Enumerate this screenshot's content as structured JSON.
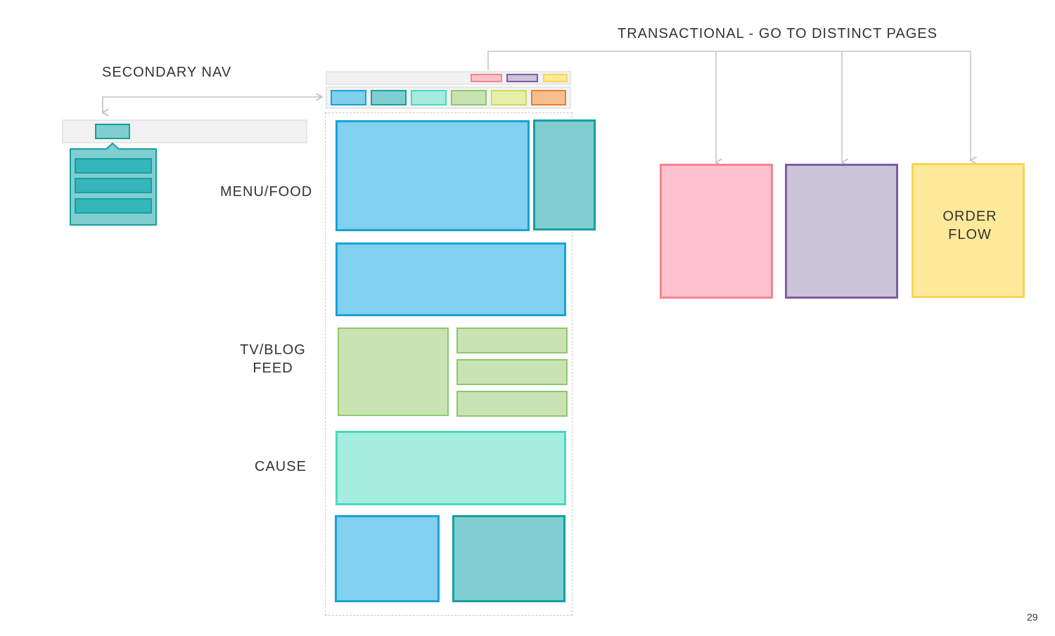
{
  "labels": {
    "transactional": "TRANSACTIONAL - GO TO DISTINCT PAGES",
    "secondary_nav": "SECONDARY NAV",
    "menu_food": "MENU/FOOD",
    "tv_blog_line1": "TV/BLOG",
    "tv_blog_line2": "FEED",
    "cause": "CAUSE",
    "order_flow_line1": "ORDER",
    "order_flow_line2": "FLOW",
    "page_number": "29"
  },
  "colors": {
    "blue_fill": "#80d0ee",
    "blue_border": "#1aa2d6",
    "teal_fill": "#80ced2",
    "teal_border": "#14a09f",
    "aqua_fill": "#a5ede0",
    "aqua_border": "#4bd9be",
    "green_fill": "#c9e3b3",
    "green_border": "#8ec872",
    "pink_fill": "#fdc2cb",
    "pink_border": "#f5848f",
    "purple_fill": "#cbc3d8",
    "purple_border": "#7f5ca3",
    "yellow_fill": "#fde99a",
    "yellow_border": "#f7d654",
    "orange_fill": "#f5c08e",
    "orange_border": "#e8822b",
    "lime_fill": "#e6f0a8",
    "lime_border": "#c8dc5e",
    "connector": "#c4c4c4"
  }
}
